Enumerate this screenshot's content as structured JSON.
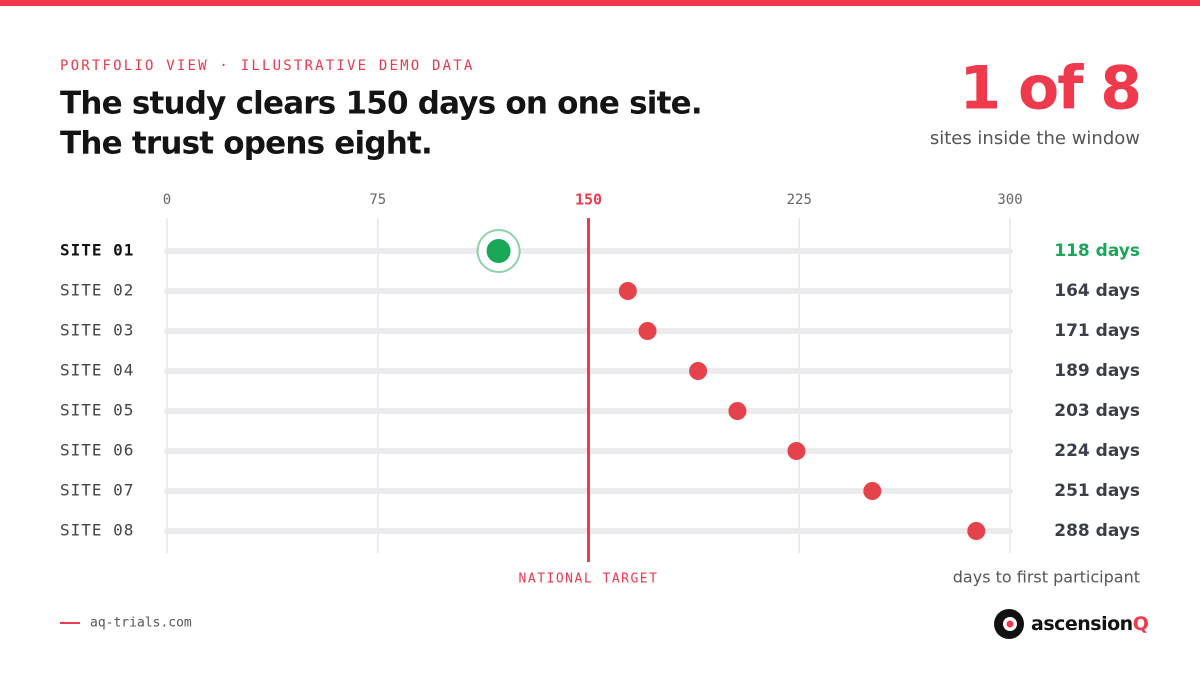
{
  "chart_data": {
    "type": "dot",
    "kicker": "PORTFOLIO VIEW · ILLUSTRATIVE DEMO DATA",
    "title": [
      "The study clears 150 days on one site.",
      "The trust opens eight."
    ],
    "stat": "1 of 8",
    "stat_label": "sites inside the window",
    "categories": [
      "SITE 01",
      "SITE 02",
      "SITE 03",
      "SITE 04",
      "SITE 05",
      "SITE 06",
      "SITE 07",
      "SITE 08"
    ],
    "values": [
      118,
      164,
      171,
      189,
      203,
      224,
      251,
      288
    ],
    "value_labels": [
      "118 days",
      "164 days",
      "171 days",
      "189 days",
      "203 days",
      "224 days",
      "251 days",
      "288 days"
    ],
    "inside_color": "#1aa757",
    "outside_color": "#e5434b",
    "xlim": [
      0,
      300
    ],
    "xticks": [
      0,
      75,
      150,
      225,
      300
    ],
    "grid": true,
    "target": {
      "value": 150,
      "label": "NATIONAL TARGET",
      "color": "#ee3a4c"
    },
    "xlabel": "days to first participant",
    "footer": "aq-trials.com",
    "brand": {
      "name": "ascension",
      "accent": "Q"
    }
  }
}
